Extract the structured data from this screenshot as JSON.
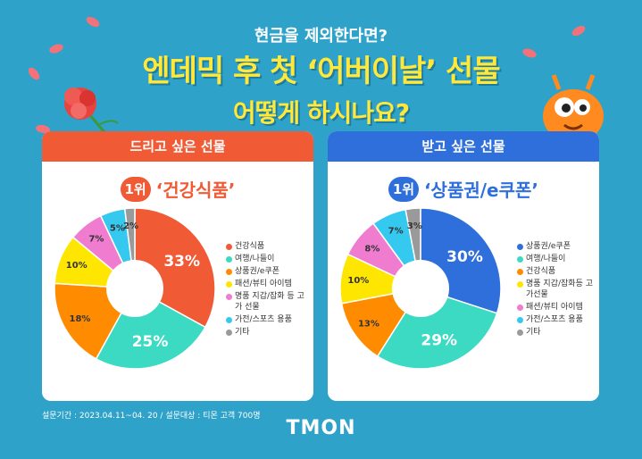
{
  "header": {
    "line1": "현금을 제외한다면?",
    "line2": "엔데믹 후 첫 ‘어버이날’ 선물",
    "line3": "어떻게 하시나요?"
  },
  "colors": {
    "background": "#2fa2c9",
    "give_header": "#f05a35",
    "receive_header": "#2f6fdc",
    "title_yellow": "#ffe83a"
  },
  "chart_data": [
    {
      "type": "pie",
      "title": "드리고 싶은 선물",
      "rank_badge": "1위",
      "rank_text": "‘건강식품’",
      "categories": [
        "건강식품",
        "여행/나들이",
        "상품권/e쿠폰",
        "패션/뷰티 아이템",
        "명품 지갑/잡화 등 고가 선물",
        "가전/스포츠 용품",
        "기타"
      ],
      "values": [
        33,
        25,
        18,
        10,
        7,
        5,
        2
      ],
      "value_labels": [
        "33%",
        "25%",
        "18%",
        "10%",
        "7%",
        "5%",
        "2%"
      ],
      "colors": [
        "#f05a35",
        "#3ddac3",
        "#ff8c00",
        "#ffe600",
        "#f07ccf",
        "#36c9f0",
        "#9a9a9a"
      ],
      "legend_position": "right"
    },
    {
      "type": "pie",
      "title": "받고 싶은 선물",
      "rank_badge": "1위",
      "rank_text": "‘상품권/e쿠폰’",
      "categories": [
        "상품권/e쿠폰",
        "여행/나들이",
        "건강식품",
        "명품 지갑/잡화등 고가선물",
        "패션/뷰티 아이템",
        "가전/스포츠 용품",
        "기타"
      ],
      "values": [
        30,
        29,
        13,
        10,
        8,
        7,
        3
      ],
      "value_labels": [
        "30%",
        "29%",
        "13%",
        "10%",
        "8%",
        "7%",
        "3%"
      ],
      "colors": [
        "#2f6fdc",
        "#3ddac3",
        "#ff8c00",
        "#ffe600",
        "#f07ccf",
        "#36c9f0",
        "#9a9a9a"
      ],
      "legend_position": "right"
    }
  ],
  "footnote": "설문기간 : 2023.04.11~04. 20 / 설문대상 : 티몬 고객 700명",
  "logo": "TMON"
}
